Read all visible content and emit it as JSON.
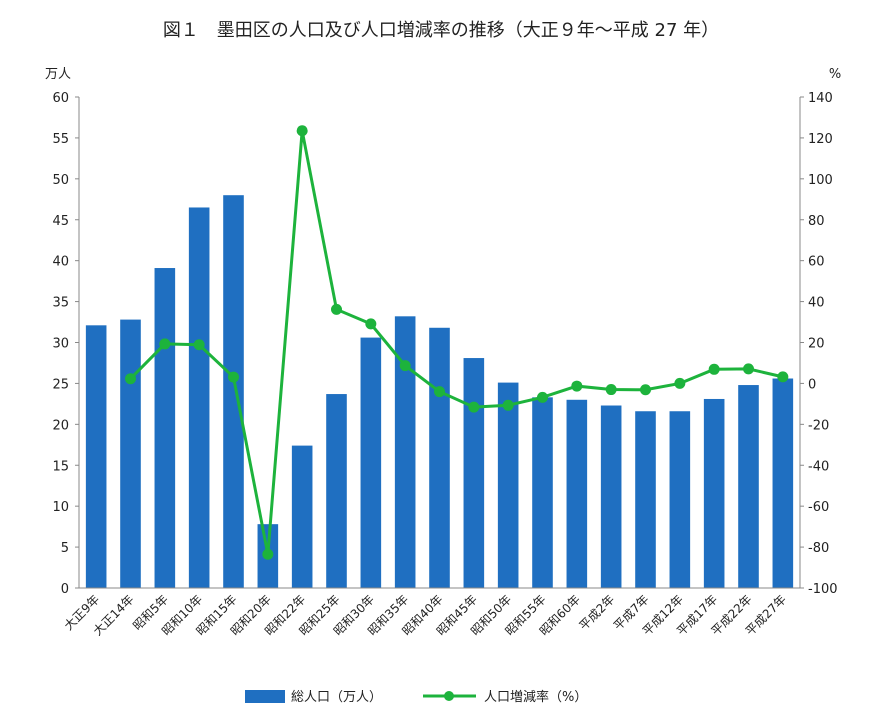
{
  "chart_data": {
    "type": "bar",
    "title": "図１　墨田区の人口及び人口増減率の推移（大正９年〜平成 27 年）",
    "left_unit": "万人",
    "right_unit": "%",
    "categories": [
      "大正9年",
      "大正14年",
      "昭和5年",
      "昭和10年",
      "昭和15年",
      "昭和20年",
      "昭和22年",
      "昭和25年",
      "昭和30年",
      "昭和35年",
      "昭和40年",
      "昭和45年",
      "昭和50年",
      "昭和55年",
      "昭和60年",
      "平成2年",
      "平成7年",
      "平成12年",
      "平成17年",
      "平成22年",
      "平成27年"
    ],
    "left_axis": {
      "min": 0,
      "max": 60,
      "step": 5,
      "ticks": [
        "0",
        "5",
        "10",
        "15",
        "20",
        "25",
        "30",
        "35",
        "40",
        "45",
        "50",
        "55",
        "60"
      ]
    },
    "right_axis": {
      "min": -100,
      "max": 140,
      "step": 20,
      "ticks": [
        "-100",
        "-80",
        "-60",
        "-40",
        "-20",
        "0",
        "20",
        "40",
        "60",
        "80",
        "100",
        "120",
        "140"
      ]
    },
    "series": [
      {
        "name": "総人口（万人）",
        "kind": "bar",
        "axis": "left",
        "color": "#1F6FC1",
        "values": [
          32.1,
          32.8,
          39.1,
          46.5,
          48.0,
          7.8,
          17.4,
          23.7,
          30.6,
          33.2,
          31.8,
          28.1,
          25.1,
          23.3,
          23.0,
          22.3,
          21.6,
          21.6,
          23.1,
          24.8,
          25.6
        ]
      },
      {
        "name": "人口増減率（%）",
        "kind": "line",
        "axis": "right",
        "color": "#1DB33C",
        "values": [
          null,
          2.3,
          19.3,
          18.9,
          3.1,
          -83.5,
          123.5,
          36.2,
          29.1,
          8.7,
          -4.0,
          -11.6,
          -10.7,
          -6.8,
          -1.3,
          -3.0,
          -3.1,
          0.0,
          6.9,
          7.1,
          3.2
        ]
      }
    ],
    "grid": false,
    "legend_position": "bottom"
  }
}
